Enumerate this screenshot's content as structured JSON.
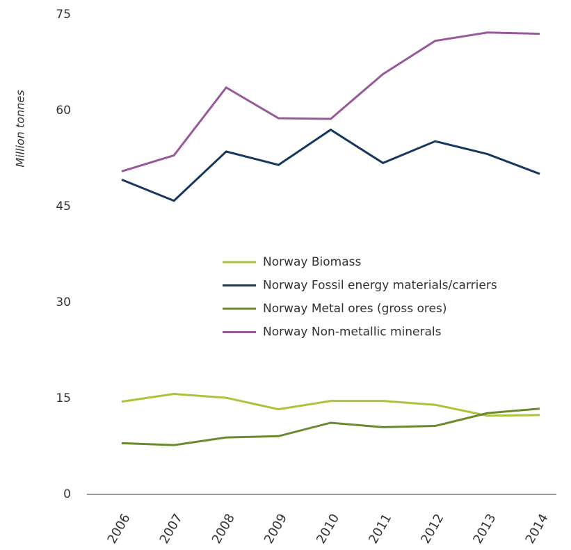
{
  "chart_data": {
    "type": "line",
    "y_label": "Million tonnes",
    "categories": [
      "2006",
      "2007",
      "2008",
      "2009",
      "2010",
      "2011",
      "2012",
      "2013",
      "2014"
    ],
    "series": [
      {
        "name": "Norway Biomass",
        "color": "#a9c33b",
        "values": [
          14.5,
          15.7,
          15.1,
          13.3,
          14.6,
          14.6,
          14.0,
          12.3,
          12.4
        ]
      },
      {
        "name": "Norway Fossil energy materials/carriers",
        "color": "#17375e",
        "values": [
          49.2,
          45.9,
          53.6,
          51.5,
          57.0,
          51.8,
          55.2,
          53.2,
          50.1
        ]
      },
      {
        "name": "Norway Metal ores (gross ores)",
        "color": "#6a8a2f",
        "values": [
          8.0,
          7.7,
          8.9,
          9.1,
          11.2,
          10.5,
          10.7,
          12.7,
          13.4
        ]
      },
      {
        "name": "Norway Non-metallic minerals",
        "color": "#98599a",
        "values": [
          50.5,
          53.0,
          63.6,
          58.8,
          58.7,
          65.7,
          70.9,
          72.2,
          72.0
        ]
      }
    ],
    "ylim": [
      0,
      75
    ],
    "yticks": [
      0,
      15,
      30,
      45,
      60,
      75
    ],
    "grid": false
  }
}
